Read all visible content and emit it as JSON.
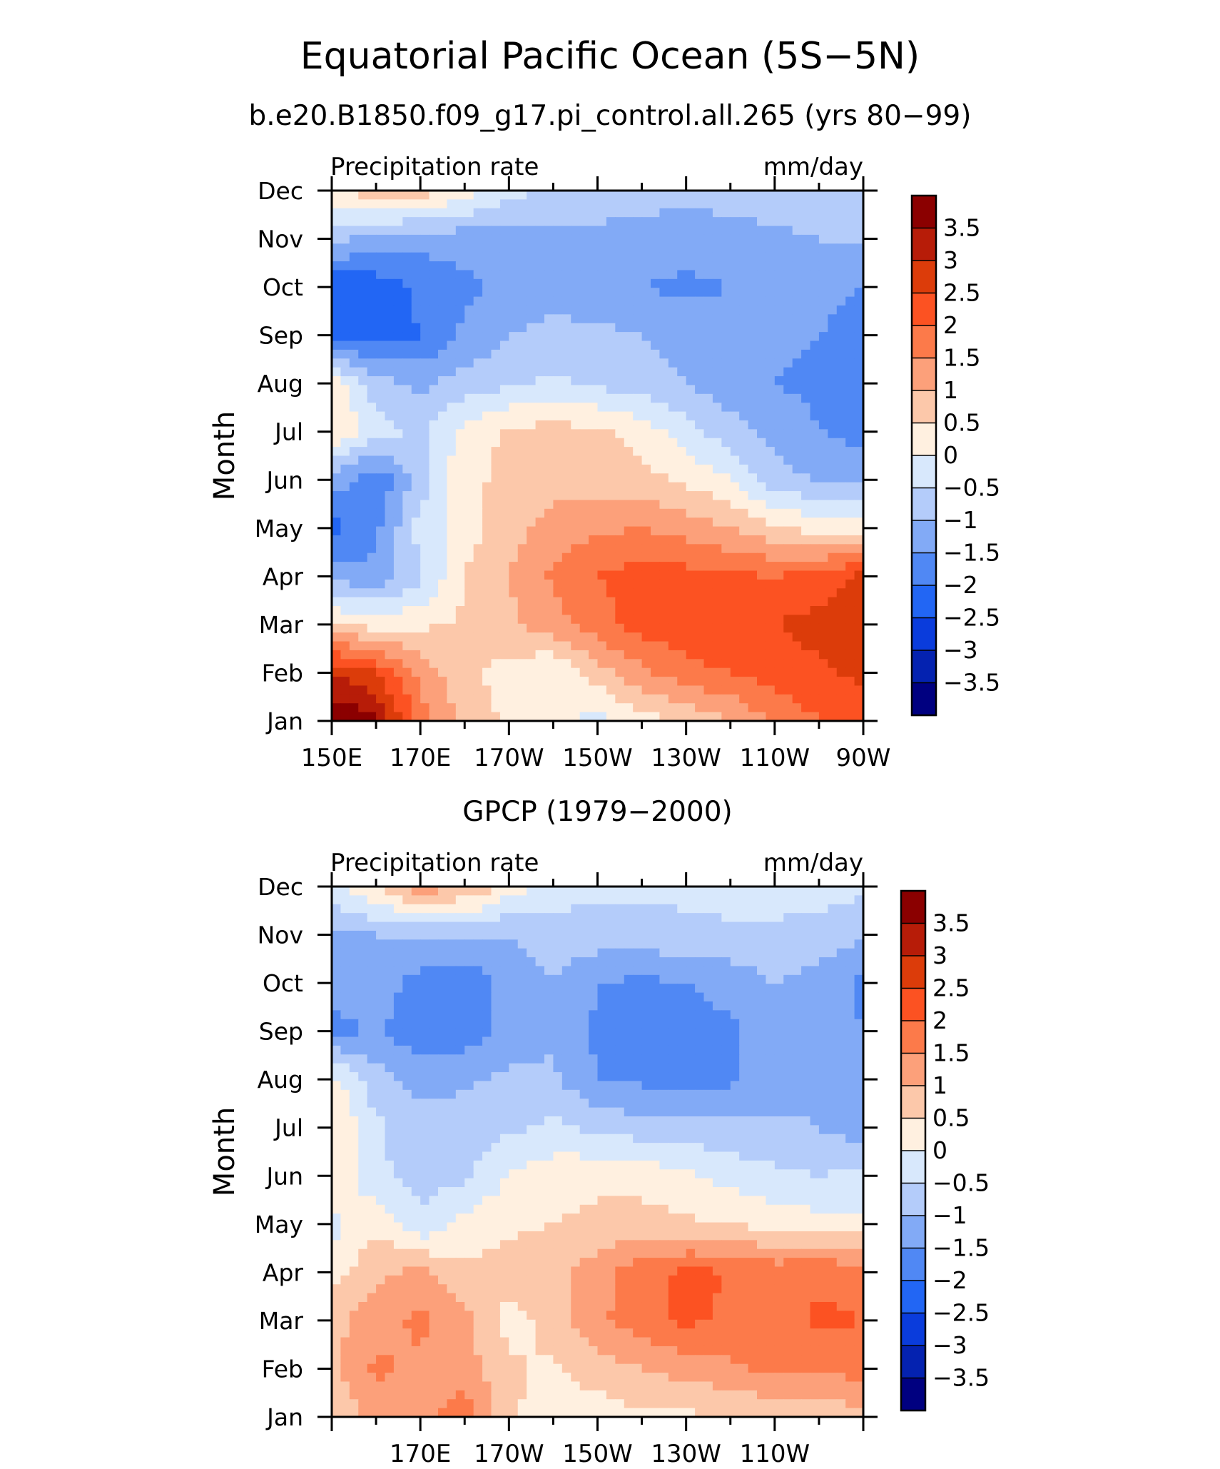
{
  "title": "Equatorial Pacific Ocean (5S−5N)",
  "subtitle": "b.e20.B1850.f09_g17.pi_control.all.265 (yrs 80−99)",
  "chart_data": [
    {
      "type": "heatmap",
      "panel_title": "",
      "left_label": "Precipitation rate",
      "right_label": "mm/day",
      "ylabel": "Month",
      "x_tick_labels": [
        "150E",
        "170E",
        "170W",
        "150W",
        "130W",
        "110W",
        "90W"
      ],
      "x_tick_lon": [
        150,
        170,
        190,
        210,
        230,
        250,
        270
      ],
      "y_tick_labels": [
        "Jan",
        "Feb",
        "Mar",
        "Apr",
        "May",
        "Jun",
        "Jul",
        "Aug",
        "Sep",
        "Oct",
        "Nov",
        "Dec"
      ],
      "xlim": [
        150,
        270
      ],
      "colorbar_labels": [
        "3.5",
        "3",
        "2.5",
        "2",
        "1.5",
        "1",
        "0.5",
        "0",
        "−0.5",
        "−1",
        "−1.5",
        "−2",
        "−2.5",
        "−3",
        "−3.5"
      ],
      "colorbar_colors": [
        "#8b0000",
        "#b71c08",
        "#dc3c0a",
        "#fc5222",
        "#fc7a4a",
        "#fca07a",
        "#fcc8aa",
        "#fff0e0",
        "#d8e8fc",
        "#b4ccfa",
        "#82aaf6",
        "#5088f4",
        "#2266f4",
        "#0a3cdc",
        "#0422b0",
        "#000080"
      ],
      "lon": [
        150,
        160,
        170,
        180,
        190,
        200,
        210,
        220,
        230,
        240,
        250,
        260,
        270
      ],
      "months": [
        1,
        2,
        3,
        4,
        5,
        6,
        7,
        8,
        9,
        10,
        11,
        12
      ],
      "values": [
        [
          4.0,
          3.6,
          1.8,
          0.8,
          0.4,
          0.2,
          -0.2,
          0.3,
          0.6,
          1.0,
          1.6,
          2.0,
          2.2
        ],
        [
          3.0,
          2.5,
          1.3,
          0.6,
          0.3,
          0.0,
          0.8,
          1.4,
          1.8,
          2.0,
          2.2,
          2.4,
          2.6
        ],
        [
          0.6,
          0.3,
          0.4,
          0.6,
          0.9,
          1.3,
          1.8,
          2.2,
          2.4,
          2.5,
          2.5,
          2.7,
          3.0
        ],
        [
          -1.2,
          -1.4,
          -0.6,
          0.5,
          1.0,
          1.6,
          2.0,
          2.2,
          2.2,
          2.1,
          2.0,
          2.2,
          2.6
        ],
        [
          -2.2,
          -1.6,
          -0.3,
          0.3,
          0.8,
          1.2,
          1.4,
          1.5,
          1.3,
          1.0,
          0.6,
          0.3,
          0.2
        ],
        [
          -1.2,
          -1.9,
          -0.8,
          0.4,
          0.6,
          0.8,
          0.8,
          0.7,
          0.4,
          0.0,
          -0.8,
          -1.0,
          -1.2
        ],
        [
          0.6,
          -0.3,
          -0.6,
          0.2,
          0.6,
          0.7,
          0.6,
          0.3,
          -0.3,
          -0.8,
          -1.2,
          -1.5,
          -1.7
        ],
        [
          0.3,
          -0.8,
          -1.1,
          -0.8,
          -0.6,
          -0.4,
          -0.6,
          -0.8,
          -1.0,
          -1.3,
          -1.5,
          -1.6,
          -1.8
        ],
        [
          -2.2,
          -2.3,
          -2.0,
          -1.4,
          -1.0,
          -0.8,
          -0.9,
          -1.0,
          -1.2,
          -1.3,
          -1.4,
          -1.5,
          -1.8
        ],
        [
          -2.5,
          -2.3,
          -1.9,
          -1.6,
          -1.4,
          -1.3,
          -1.3,
          -1.5,
          -1.6,
          -1.5,
          -1.4,
          -1.3,
          -1.5
        ],
        [
          -0.8,
          -1.2,
          -1.3,
          -1.3,
          -1.2,
          -1.1,
          -1.1,
          -1.2,
          -1.3,
          -1.2,
          -1.1,
          -1.0,
          -0.9
        ],
        [
          0.4,
          0.9,
          0.8,
          0.3,
          -0.3,
          -0.6,
          -0.8,
          -0.8,
          -0.8,
          -0.8,
          -0.7,
          -0.6,
          -0.5
        ]
      ]
    },
    {
      "type": "heatmap",
      "panel_title": "GPCP (1979−2000)",
      "left_label": "Precipitation rate",
      "right_label": "mm/day",
      "ylabel": "Month",
      "x_tick_labels": [
        "170E",
        "170W",
        "150W",
        "130W",
        "110W"
      ],
      "x_tick_lon": [
        170,
        190,
        210,
        230,
        250
      ],
      "y_tick_labels": [
        "Jan",
        "Feb",
        "Mar",
        "Apr",
        "May",
        "Jun",
        "Jul",
        "Aug",
        "Sep",
        "Oct",
        "Nov",
        "Dec"
      ],
      "xlim": [
        150,
        270
      ],
      "colorbar_labels": [
        "3.5",
        "3",
        "2.5",
        "2",
        "1.5",
        "1",
        "0.5",
        "0",
        "−0.5",
        "−1",
        "−1.5",
        "−2",
        "−2.5",
        "−3",
        "−3.5"
      ],
      "colorbar_colors": [
        "#8b0000",
        "#b71c08",
        "#dc3c0a",
        "#fc5222",
        "#fc7a4a",
        "#fca07a",
        "#fcc8aa",
        "#fff0e0",
        "#d8e8fc",
        "#b4ccfa",
        "#82aaf6",
        "#5088f4",
        "#2266f4",
        "#0a3cdc",
        "#0422b0",
        "#000080"
      ],
      "lon": [
        150,
        160,
        170,
        180,
        190,
        200,
        210,
        220,
        230,
        240,
        250,
        260,
        270
      ],
      "months": [
        1,
        2,
        3,
        4,
        5,
        6,
        7,
        8,
        9,
        10,
        11,
        12
      ],
      "values": [
        [
          0.6,
          1.2,
          1.3,
          1.8,
          0.6,
          0.2,
          0.2,
          0.4,
          0.4,
          0.5,
          0.6,
          0.7,
          0.8
        ],
        [
          0.9,
          1.6,
          1.4,
          1.2,
          0.6,
          0.4,
          0.8,
          1.0,
          1.2,
          1.4,
          1.6,
          1.6,
          1.7
        ],
        [
          0.8,
          1.3,
          1.6,
          1.2,
          0.3,
          0.7,
          1.4,
          1.8,
          2.1,
          1.9,
          1.6,
          2.1,
          2.0
        ],
        [
          0.3,
          0.9,
          1.1,
          0.6,
          0.7,
          0.8,
          1.3,
          1.8,
          2.1,
          2.0,
          1.8,
          1.9,
          1.8
        ],
        [
          -0.2,
          0.4,
          -0.4,
          0.2,
          0.4,
          0.5,
          0.6,
          0.7,
          0.6,
          0.5,
          0.3,
          0.2,
          0.1
        ],
        [
          0.4,
          -0.4,
          -0.7,
          -0.6,
          0.0,
          0.3,
          0.4,
          0.3,
          0.1,
          -0.2,
          -0.4,
          -0.5,
          -0.4
        ],
        [
          0.6,
          -0.4,
          -0.8,
          -0.7,
          -0.6,
          -0.4,
          -0.6,
          -0.8,
          -0.8,
          -0.9,
          -0.9,
          -1.0,
          -1.3
        ],
        [
          0.2,
          -0.8,
          -1.2,
          -1.1,
          -0.9,
          -0.9,
          -1.5,
          -1.6,
          -1.7,
          -1.6,
          -1.2,
          -1.1,
          -1.2
        ],
        [
          -1.7,
          -1.4,
          -1.9,
          -1.8,
          -1.3,
          -1.1,
          -1.6,
          -1.6,
          -1.7,
          -1.6,
          -1.2,
          -1.3,
          -1.5
        ],
        [
          -1.3,
          -1.2,
          -1.7,
          -1.9,
          -1.3,
          -1.0,
          -1.5,
          -1.6,
          -1.5,
          -1.3,
          -1.0,
          -1.2,
          -1.6
        ],
        [
          -1.1,
          -1.0,
          -0.9,
          -0.9,
          -1.0,
          -0.8,
          -0.7,
          -0.7,
          -0.6,
          -0.6,
          -0.6,
          -0.7,
          -0.9
        ],
        [
          -0.2,
          0.5,
          1.3,
          1.0,
          0.3,
          -0.2,
          -0.4,
          -0.4,
          -0.4,
          -0.3,
          -0.3,
          -0.3,
          -0.4
        ]
      ]
    }
  ]
}
